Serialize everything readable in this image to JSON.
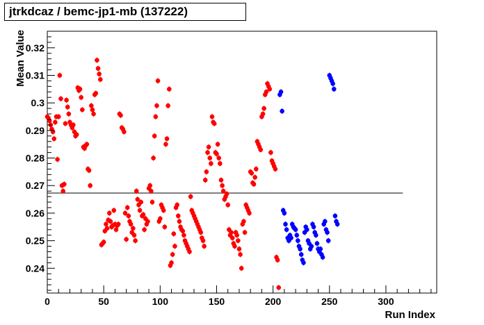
{
  "title": "jtrkdcaz / bemc-jp1-mb (137222)",
  "chart_data": {
    "type": "scatter",
    "xlabel": "Run Index",
    "ylabel": "Mean Value",
    "xlim": [
      0,
      345
    ],
    "ylim": [
      0.231,
      0.326
    ],
    "x_ticks": [
      0,
      50,
      100,
      150,
      200,
      250,
      300
    ],
    "y_ticks": [
      0.24,
      0.25,
      0.26,
      0.27,
      0.28,
      0.29,
      0.3,
      0.31,
      0.32
    ],
    "x_tick_labels": [
      "0",
      "50",
      "100",
      "150",
      "200",
      "250",
      "300"
    ],
    "y_tick_labels": [
      "0.24",
      "0.25",
      "0.26",
      "0.27",
      "0.28",
      "0.29",
      "0.3",
      "0.31",
      "0.32"
    ],
    "reference_line": {
      "y": 0.2673,
      "x_start": 0,
      "x_end": 315,
      "color": "#000000"
    },
    "grid": false,
    "legend": "none",
    "series": [
      {
        "color": "#ff0000",
        "points": [
          [
            0,
            0.295
          ],
          [
            1,
            0.2945
          ],
          [
            2,
            0.2935
          ],
          [
            3,
            0.292
          ],
          [
            4,
            0.2905
          ],
          [
            5,
            0.2895
          ],
          [
            6,
            0.287
          ],
          [
            7,
            0.293
          ],
          [
            8,
            0.295
          ],
          [
            9,
            0.2795
          ],
          [
            10,
            0.295
          ],
          [
            11,
            0.31
          ],
          [
            12,
            0.3015
          ],
          [
            13,
            0.27
          ],
          [
            14,
            0.268
          ],
          [
            15,
            0.2705
          ],
          [
            16,
            0.2925
          ],
          [
            17,
            0.301
          ],
          [
            18,
            0.2985
          ],
          [
            19,
            0.296
          ],
          [
            20,
            0.293
          ],
          [
            21,
            0.292
          ],
          [
            22,
            0.291
          ],
          [
            23,
            0.292
          ],
          [
            24,
            0.2895
          ],
          [
            25,
            0.288
          ],
          [
            26,
            0.2885
          ],
          [
            27,
            0.3055
          ],
          [
            28,
            0.3045
          ],
          [
            29,
            0.305
          ],
          [
            30,
            0.302
          ],
          [
            31,
            0.2975
          ],
          [
            32,
            0.284
          ],
          [
            33,
            0.2835
          ],
          [
            34,
            0.2845
          ],
          [
            35,
            0.285
          ],
          [
            36,
            0.276
          ],
          [
            37,
            0.2755
          ],
          [
            38,
            0.27
          ],
          [
            39,
            0.299
          ],
          [
            40,
            0.2975
          ],
          [
            41,
            0.296
          ],
          [
            42,
            0.303
          ],
          [
            43,
            0.3035
          ],
          [
            44,
            0.3155
          ],
          [
            45,
            0.3125
          ],
          [
            46,
            0.3105
          ],
          [
            47,
            0.3085
          ],
          [
            48,
            0.2485
          ],
          [
            49,
            0.249
          ],
          [
            50,
            0.2495
          ],
          [
            51,
            0.2535
          ],
          [
            52,
            0.256
          ],
          [
            53,
            0.2545
          ],
          [
            54,
            0.2575
          ],
          [
            55,
            0.26
          ],
          [
            56,
            0.257
          ],
          [
            57,
            0.255
          ],
          [
            58,
            0.2555
          ],
          [
            59,
            0.261
          ],
          [
            60,
            0.256
          ],
          [
            61,
            0.254
          ],
          [
            62,
            0.2555
          ],
          [
            63,
            0.256
          ],
          [
            64,
            0.296
          ],
          [
            65,
            0.2955
          ],
          [
            66,
            0.291
          ],
          [
            67,
            0.2905
          ],
          [
            68,
            0.2895
          ],
          [
            69,
            0.26
          ],
          [
            70,
            0.2505
          ],
          [
            71,
            0.262
          ],
          [
            72,
            0.259
          ],
          [
            73,
            0.257
          ],
          [
            74,
            0.256
          ],
          [
            75,
            0.253
          ],
          [
            76,
            0.2545
          ],
          [
            77,
            0.252
          ],
          [
            78,
            0.25
          ],
          [
            79,
            0.268
          ],
          [
            80,
            0.265
          ],
          [
            81,
            0.263
          ],
          [
            82,
            0.261
          ],
          [
            83,
            0.264
          ],
          [
            84,
            0.259
          ],
          [
            85,
            0.2595
          ],
          [
            86,
            0.254
          ],
          [
            87,
            0.258
          ],
          [
            88,
            0.256
          ],
          [
            89,
            0.257
          ],
          [
            90,
            0.269
          ],
          [
            91,
            0.27
          ],
          [
            92,
            0.268
          ],
          [
            93,
            0.264
          ],
          [
            94,
            0.28
          ],
          [
            95,
            0.288
          ],
          [
            96,
            0.295
          ],
          [
            97,
            0.299
          ],
          [
            98,
            0.308
          ],
          [
            99,
            0.257
          ],
          [
            100,
            0.258
          ],
          [
            101,
            0.263
          ],
          [
            102,
            0.262
          ],
          [
            103,
            0.261
          ],
          [
            104,
            0.255
          ],
          [
            105,
            0.285
          ],
          [
            106,
            0.287
          ],
          [
            107,
            0.299
          ],
          [
            108,
            0.305
          ],
          [
            109,
            0.241
          ],
          [
            110,
            0.242
          ],
          [
            111,
            0.245
          ],
          [
            112,
            0.2525
          ],
          [
            113,
            0.248
          ],
          [
            114,
            0.262
          ],
          [
            115,
            0.263
          ],
          [
            116,
            0.259
          ],
          [
            117,
            0.257
          ],
          [
            118,
            0.255
          ],
          [
            119,
            0.254
          ],
          [
            120,
            0.2535
          ],
          [
            121,
            0.252
          ],
          [
            122,
            0.25
          ],
          [
            123,
            0.249
          ],
          [
            124,
            0.248
          ],
          [
            125,
            0.247
          ],
          [
            126,
            0.246
          ],
          [
            127,
            0.266
          ],
          [
            128,
            0.261
          ],
          [
            129,
            0.26
          ],
          [
            130,
            0.259
          ],
          [
            131,
            0.258
          ],
          [
            132,
            0.257
          ],
          [
            133,
            0.256
          ],
          [
            134,
            0.255
          ],
          [
            135,
            0.254
          ],
          [
            136,
            0.253
          ],
          [
            137,
            0.251
          ],
          [
            138,
            0.25
          ],
          [
            139,
            0.248
          ],
          [
            140,
            0.272
          ],
          [
            141,
            0.275
          ],
          [
            142,
            0.282
          ],
          [
            143,
            0.284
          ],
          [
            144,
            0.28
          ],
          [
            145,
            0.278
          ],
          [
            146,
            0.295
          ],
          [
            147,
            0.293
          ],
          [
            148,
            0.2925
          ],
          [
            149,
            0.282
          ],
          [
            150,
            0.2815
          ],
          [
            151,
            0.285
          ],
          [
            152,
            0.28
          ],
          [
            153,
            0.278
          ],
          [
            154,
            0.272
          ],
          [
            155,
            0.27
          ],
          [
            156,
            0.268
          ],
          [
            157,
            0.265
          ],
          [
            158,
            0.266
          ],
          [
            159,
            0.267
          ],
          [
            160,
            0.263
          ],
          [
            161,
            0.254
          ],
          [
            162,
            0.252
          ],
          [
            163,
            0.253
          ],
          [
            164,
            0.251
          ],
          [
            165,
            0.249
          ],
          [
            166,
            0.248
          ],
          [
            167,
            0.253
          ],
          [
            168,
            0.252
          ],
          [
            169,
            0.25
          ],
          [
            170,
            0.247
          ],
          [
            171,
            0.245
          ],
          [
            172,
            0.24
          ],
          [
            173,
            0.256
          ],
          [
            174,
            0.257
          ],
          [
            175,
            0.253
          ],
          [
            176,
            0.263
          ],
          [
            177,
            0.262
          ],
          [
            178,
            0.261
          ],
          [
            179,
            0.26
          ],
          [
            180,
            0.275
          ],
          [
            181,
            0.2745
          ],
          [
            182,
            0.271
          ],
          [
            183,
            0.2705
          ],
          [
            184,
            0.273
          ],
          [
            185,
            0.276
          ],
          [
            186,
            0.286
          ],
          [
            187,
            0.285
          ],
          [
            188,
            0.284
          ],
          [
            189,
            0.283
          ],
          [
            190,
            0.295
          ],
          [
            191,
            0.296
          ],
          [
            192,
            0.298
          ],
          [
            193,
            0.303
          ],
          [
            194,
            0.304
          ],
          [
            195,
            0.307
          ],
          [
            196,
            0.306
          ],
          [
            197,
            0.305
          ],
          [
            198,
            0.282
          ],
          [
            199,
            0.279
          ],
          [
            200,
            0.278
          ],
          [
            201,
            0.277
          ],
          [
            202,
            0.276
          ],
          [
            203,
            0.244
          ],
          [
            204,
            0.243
          ],
          [
            205,
            0.233
          ]
        ]
      },
      {
        "color": "#0000ff",
        "points": [
          [
            206,
            0.303
          ],
          [
            207,
            0.304
          ],
          [
            208,
            0.297
          ],
          [
            209,
            0.261
          ],
          [
            210,
            0.26
          ],
          [
            211,
            0.256
          ],
          [
            212,
            0.254
          ],
          [
            213,
            0.251
          ],
          [
            214,
            0.25
          ],
          [
            215,
            0.252
          ],
          [
            216,
            0.251
          ],
          [
            217,
            0.256
          ],
          [
            218,
            0.255
          ],
          [
            219,
            0.2545
          ],
          [
            220,
            0.254
          ],
          [
            221,
            0.252
          ],
          [
            222,
            0.25
          ],
          [
            223,
            0.248
          ],
          [
            224,
            0.247
          ],
          [
            225,
            0.245
          ],
          [
            226,
            0.243
          ],
          [
            227,
            0.242
          ],
          [
            228,
            0.253
          ],
          [
            229,
            0.255
          ],
          [
            230,
            0.254
          ],
          [
            231,
            0.25
          ],
          [
            232,
            0.249
          ],
          [
            233,
            0.247
          ],
          [
            234,
            0.248
          ],
          [
            235,
            0.256
          ],
          [
            236,
            0.255
          ],
          [
            237,
            0.253
          ],
          [
            238,
            0.252
          ],
          [
            239,
            0.249
          ],
          [
            240,
            0.247
          ],
          [
            241,
            0.246
          ],
          [
            242,
            0.247
          ],
          [
            243,
            0.245
          ],
          [
            244,
            0.244
          ],
          [
            245,
            0.256
          ],
          [
            246,
            0.257
          ],
          [
            247,
            0.254
          ],
          [
            248,
            0.253
          ],
          [
            249,
            0.25
          ],
          [
            250,
            0.31
          ],
          [
            251,
            0.309
          ],
          [
            252,
            0.308
          ],
          [
            253,
            0.307
          ],
          [
            254,
            0.305
          ],
          [
            255,
            0.259
          ],
          [
            256,
            0.257
          ],
          [
            257,
            0.256
          ]
        ]
      }
    ]
  }
}
